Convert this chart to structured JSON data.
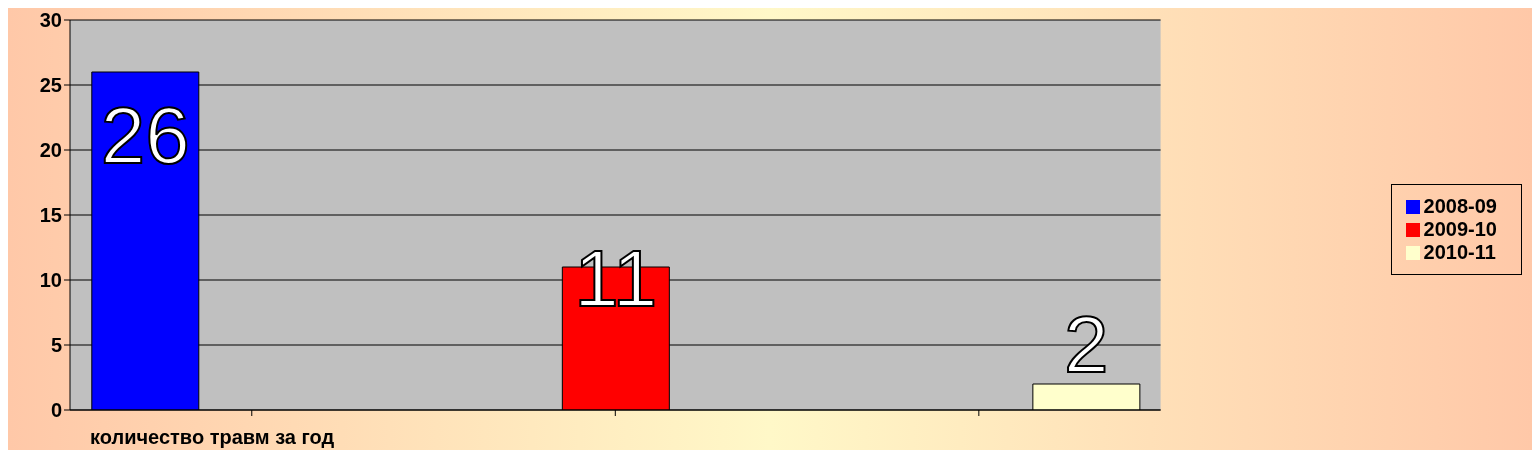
{
  "chart_data": {
    "type": "bar",
    "xlabel": "количество травм за год",
    "categories": [
      null,
      null,
      null
    ],
    "series": [
      {
        "name": "2008-09",
        "color": "#0000ff",
        "values": [
          26,
          null,
          null
        ]
      },
      {
        "name": "2009-10",
        "color": "#ff0000",
        "values": [
          null,
          11,
          null
        ]
      },
      {
        "name": "2010-11",
        "color": "#ffffcc",
        "values": [
          null,
          null,
          2
        ]
      }
    ],
    "ylim": [
      0,
      30
    ],
    "yticks": [
      0,
      5,
      10,
      15,
      20,
      25,
      30
    ],
    "grid": "y",
    "legend": "right",
    "data_labels": true
  }
}
